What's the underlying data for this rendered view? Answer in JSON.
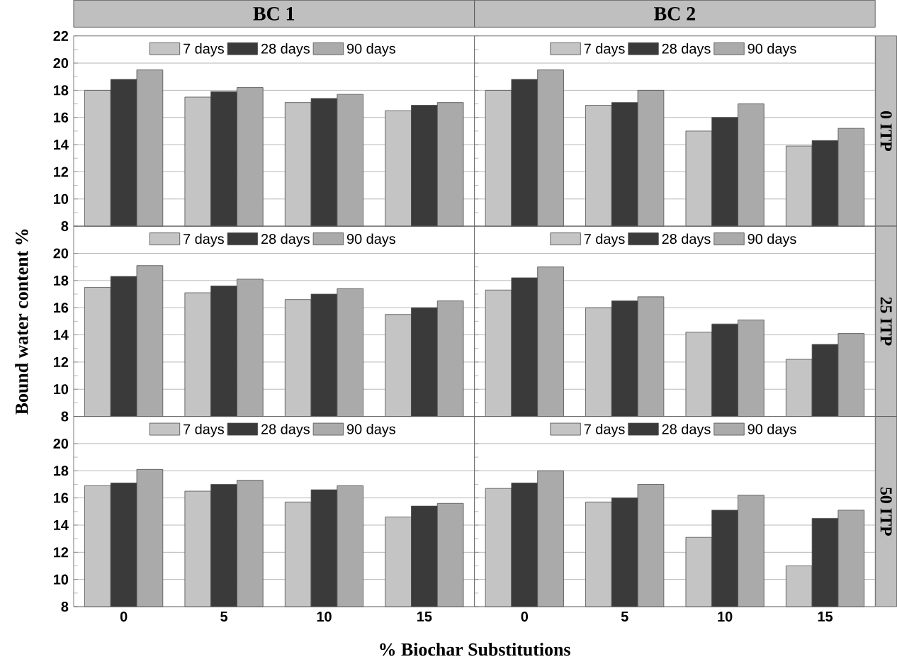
{
  "chart_data": [
    {
      "type": "bar",
      "title": "BC 1",
      "categories": [
        "0",
        "5",
        "10",
        "15"
      ],
      "ylim": [
        8,
        22
      ],
      "yticks": [
        8,
        10,
        12,
        14,
        16,
        18,
        20,
        22
      ],
      "grid": "y",
      "legend": "top",
      "tick_labels": "y",
      "series": [
        {
          "name": "7 days",
          "color": "#c4c4c4",
          "values": [
            18.0,
            17.5,
            17.1,
            16.5
          ]
        },
        {
          "name": "28 days",
          "color": "#3a3a3a",
          "values": [
            18.8,
            17.9,
            17.4,
            16.9
          ]
        },
        {
          "name": "90 days",
          "color": "#aaaaaa",
          "values": [
            19.5,
            18.2,
            17.7,
            17.1
          ]
        }
      ]
    },
    {
      "type": "bar",
      "title": "BC 2",
      "y2label": "0 ITP",
      "categories": [
        "0",
        "5",
        "10",
        "15"
      ],
      "ylim": [
        8,
        22
      ],
      "yticks": [
        8,
        10,
        12,
        14,
        16,
        18,
        20,
        22
      ],
      "grid": "y",
      "legend": "top",
      "tick_labels": false,
      "series": [
        {
          "name": "7 days",
          "color": "#c4c4c4",
          "values": [
            18.0,
            16.9,
            15.0,
            13.9
          ]
        },
        {
          "name": "28 days",
          "color": "#3a3a3a",
          "values": [
            18.8,
            17.1,
            16.0,
            14.3
          ]
        },
        {
          "name": "90 days",
          "color": "#aaaaaa",
          "values": [
            19.5,
            18.0,
            17.0,
            15.2
          ]
        }
      ]
    },
    {
      "type": "bar",
      "ylabel": "Bound water content %",
      "categories": [
        "0",
        "5",
        "10",
        "15"
      ],
      "ylim": [
        8,
        22
      ],
      "yticks": [
        8,
        10,
        12,
        14,
        16,
        18,
        20
      ],
      "grid": "y",
      "legend": "top",
      "tick_labels": "y",
      "series": [
        {
          "name": "7 days",
          "color": "#c4c4c4",
          "values": [
            17.5,
            17.1,
            16.6,
            15.5
          ]
        },
        {
          "name": "28 days",
          "color": "#3a3a3a",
          "values": [
            18.3,
            17.6,
            17.0,
            16.0
          ]
        },
        {
          "name": "90 days",
          "color": "#aaaaaa",
          "values": [
            19.1,
            18.1,
            17.4,
            16.5
          ]
        }
      ]
    },
    {
      "type": "bar",
      "y2label": "25 ITP",
      "categories": [
        "0",
        "5",
        "10",
        "15"
      ],
      "ylim": [
        8,
        22
      ],
      "yticks": [
        8,
        10,
        12,
        14,
        16,
        18,
        20
      ],
      "grid": "y",
      "legend": "top",
      "tick_labels": false,
      "series": [
        {
          "name": "7 days",
          "color": "#c4c4c4",
          "values": [
            17.3,
            16.0,
            14.2,
            12.2
          ]
        },
        {
          "name": "28 days",
          "color": "#3a3a3a",
          "values": [
            18.2,
            16.5,
            14.8,
            13.3
          ]
        },
        {
          "name": "90 days",
          "color": "#aaaaaa",
          "values": [
            19.0,
            16.8,
            15.1,
            14.1
          ]
        }
      ]
    },
    {
      "type": "bar",
      "xlabel": "% Biochar Substitutions",
      "categories": [
        "0",
        "5",
        "10",
        "15"
      ],
      "ylim": [
        8,
        22
      ],
      "yticks": [
        8,
        10,
        12,
        14,
        16,
        18,
        20
      ],
      "grid": "y",
      "legend": "top",
      "series": [
        {
          "name": "7 days",
          "color": "#c4c4c4",
          "values": [
            16.9,
            16.5,
            15.7,
            14.6
          ]
        },
        {
          "name": "28 days",
          "color": "#3a3a3a",
          "values": [
            17.1,
            17.0,
            16.6,
            15.4
          ]
        },
        {
          "name": "90 days",
          "color": "#aaaaaa",
          "values": [
            18.1,
            17.3,
            16.9,
            15.6
          ]
        }
      ]
    },
    {
      "type": "bar",
      "y2label": "50 ITP",
      "categories": [
        "0",
        "5",
        "10",
        "15"
      ],
      "ylim": [
        8,
        22
      ],
      "yticks": [
        8,
        10,
        12,
        14,
        16,
        18,
        20
      ],
      "grid": "y",
      "legend": "top",
      "tick_labels": "x",
      "series": [
        {
          "name": "7 days",
          "color": "#c4c4c4",
          "values": [
            16.7,
            15.7,
            13.1,
            11.0
          ]
        },
        {
          "name": "28 days",
          "color": "#3a3a3a",
          "values": [
            17.1,
            16.0,
            15.1,
            14.5
          ]
        },
        {
          "name": "90 days",
          "color": "#aaaaaa",
          "values": [
            18.0,
            17.0,
            16.2,
            15.1
          ]
        }
      ]
    }
  ]
}
